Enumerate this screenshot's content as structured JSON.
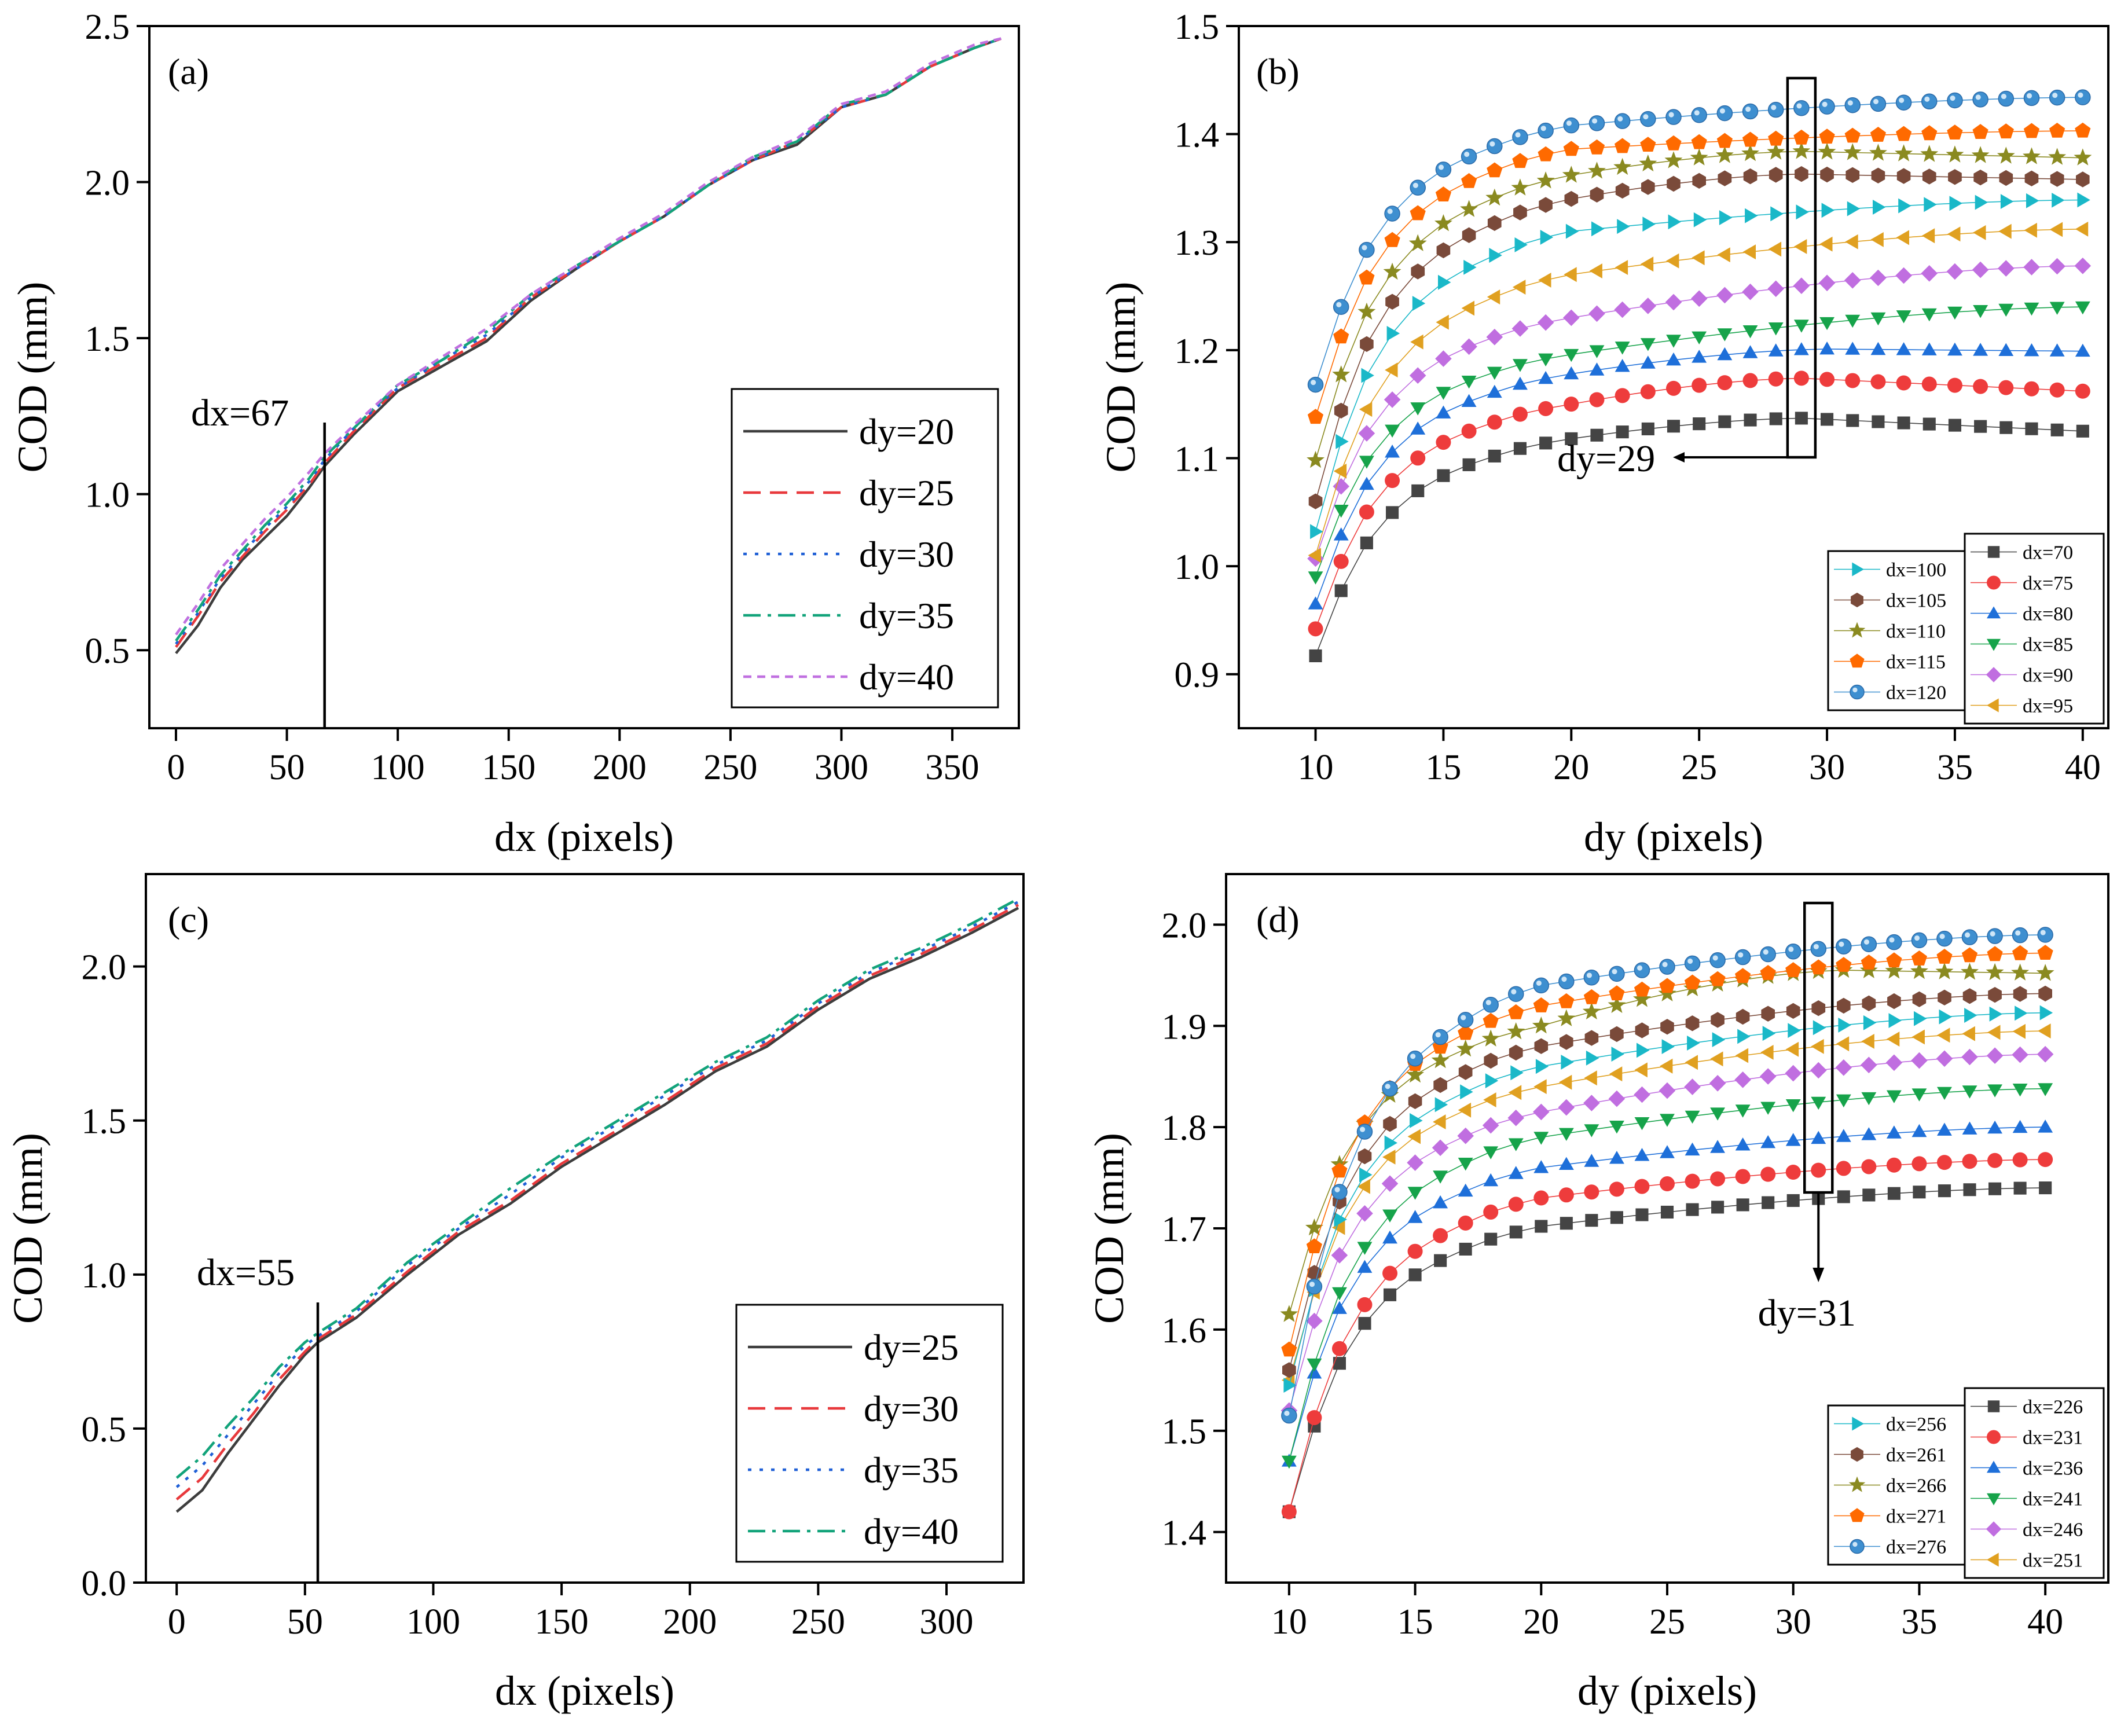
{
  "chart_data": [
    {
      "panel": "(a)",
      "type": "line",
      "xlabel": "dx (pixels)",
      "ylabel": "COD (mm)",
      "xlim": [
        -12,
        380
      ],
      "ylim": [
        0.25,
        2.5
      ],
      "xticks": [
        0,
        50,
        100,
        150,
        200,
        250,
        300,
        350
      ],
      "yticks": [
        0.5,
        1.0,
        1.5,
        2.0,
        2.5
      ],
      "ytick_labels": [
        "0.5",
        "1.0",
        "1.5",
        "2.0",
        "2.5"
      ],
      "annotation": {
        "text": "dx=67",
        "x": 67
      },
      "legend": "bottom-right",
      "series": [
        {
          "name": "dy=20",
          "color": "#3d3d3d",
          "dash": "solid",
          "x": [
            0,
            10,
            20,
            30,
            40,
            50,
            60,
            67,
            80,
            100,
            120,
            140,
            160,
            180,
            200,
            220,
            240,
            260,
            280,
            300,
            320,
            340,
            360,
            372
          ],
          "y": [
            0.49,
            0.58,
            0.7,
            0.79,
            0.86,
            0.93,
            1.02,
            1.09,
            1.19,
            1.33,
            1.41,
            1.49,
            1.62,
            1.72,
            1.81,
            1.89,
            1.99,
            2.07,
            2.12,
            2.24,
            2.28,
            2.37,
            2.43,
            2.46
          ]
        },
        {
          "name": "dy=25",
          "color": "#e8393c",
          "dash": "dashed",
          "x": [
            0,
            10,
            20,
            30,
            40,
            50,
            60,
            67,
            80,
            100,
            120,
            140,
            160,
            180,
            200,
            220,
            240,
            260,
            280,
            300,
            320,
            340,
            360,
            372
          ],
          "y": [
            0.51,
            0.61,
            0.72,
            0.8,
            0.88,
            0.95,
            1.03,
            1.1,
            1.2,
            1.34,
            1.42,
            1.5,
            1.63,
            1.72,
            1.81,
            1.89,
            1.99,
            2.07,
            2.13,
            2.24,
            2.28,
            2.37,
            2.43,
            2.46
          ]
        },
        {
          "name": "dy=30",
          "color": "#1f5fd6",
          "dash": "dotted",
          "x": [
            0,
            10,
            20,
            30,
            40,
            50,
            60,
            67,
            80,
            100,
            120,
            140,
            160,
            180,
            200,
            220,
            240,
            260,
            280,
            300,
            320,
            340,
            360,
            372
          ],
          "y": [
            0.52,
            0.62,
            0.73,
            0.81,
            0.89,
            0.96,
            1.04,
            1.11,
            1.21,
            1.34,
            1.43,
            1.51,
            1.63,
            1.72,
            1.81,
            1.89,
            1.99,
            2.07,
            2.13,
            2.24,
            2.28,
            2.37,
            2.43,
            2.46
          ]
        },
        {
          "name": "dy=35",
          "color": "#12a37a",
          "dash": "dashdot",
          "x": [
            0,
            10,
            20,
            30,
            40,
            50,
            60,
            67,
            80,
            100,
            120,
            140,
            160,
            180,
            200,
            220,
            240,
            260,
            280,
            300,
            320,
            340,
            360,
            372
          ],
          "y": [
            0.53,
            0.63,
            0.74,
            0.82,
            0.9,
            0.97,
            1.05,
            1.12,
            1.21,
            1.35,
            1.43,
            1.52,
            1.64,
            1.73,
            1.81,
            1.89,
            1.99,
            2.08,
            2.13,
            2.25,
            2.28,
            2.37,
            2.43,
            2.46
          ]
        },
        {
          "name": "dy=40",
          "color": "#c070e0",
          "dash": "shortdash",
          "x": [
            0,
            10,
            20,
            30,
            40,
            50,
            60,
            67,
            80,
            100,
            120,
            140,
            160,
            180,
            200,
            220,
            240,
            260,
            280,
            300,
            320,
            340,
            360,
            372
          ],
          "y": [
            0.55,
            0.65,
            0.76,
            0.84,
            0.92,
            0.99,
            1.07,
            1.13,
            1.22,
            1.35,
            1.44,
            1.53,
            1.64,
            1.73,
            1.82,
            1.9,
            2.0,
            2.08,
            2.14,
            2.25,
            2.29,
            2.38,
            2.44,
            2.46
          ]
        }
      ]
    },
    {
      "panel": "(b)",
      "type": "line",
      "xlabel": "dy (pixels)",
      "ylabel": "COD (mm)",
      "xlim": [
        7,
        41
      ],
      "ylim": [
        0.85,
        1.5
      ],
      "xticks": [
        10,
        15,
        20,
        25,
        30,
        35,
        40
      ],
      "yticks": [
        0.9,
        1.0,
        1.1,
        1.2,
        1.3,
        1.4,
        1.5
      ],
      "ytick_labels": [
        "0.9",
        "1.0",
        "1.1",
        "1.2",
        "1.3",
        "1.4",
        "1.5"
      ],
      "annotation": {
        "text": "dy=29",
        "x": 29
      },
      "legend": "bottom-right",
      "legend_left": [
        "dx=100",
        "dx=105",
        "dx=110",
        "dx=115",
        "dx=120"
      ],
      "legend_right": [
        "dx=70",
        "dx=75",
        "dx=80",
        "dx=85",
        "dx=90",
        "dx=95"
      ],
      "series": [
        {
          "name": "dx=70",
          "color": "#444444",
          "marker": "square",
          "y10": 0.917,
          "y20": 1.118,
          "ymax": 1.137,
          "yend": 1.125,
          "pk": 29
        },
        {
          "name": "dx=75",
          "color": "#ee3c3c",
          "marker": "circle",
          "y10": 0.942,
          "y20": 1.15,
          "ymax": 1.174,
          "yend": 1.162,
          "pk": 29
        },
        {
          "name": "dx=80",
          "color": "#1e6fd9",
          "marker": "triangle-up",
          "y10": 0.965,
          "y20": 1.178,
          "ymax": 1.201,
          "yend": 1.199,
          "pk": 30
        },
        {
          "name": "dx=85",
          "color": "#16a34a",
          "marker": "triangle-down",
          "y10": 0.99,
          "y20": 1.196,
          "ymax": 1.24,
          "yend": 1.24,
          "pk": 40
        },
        {
          "name": "dx=90",
          "color": "#c06ee0",
          "marker": "diamond",
          "y10": 1.007,
          "y20": 1.23,
          "ymax": 1.278,
          "yend": 1.278,
          "pk": 40
        },
        {
          "name": "dx=95",
          "color": "#e0a020",
          "marker": "triangle-left",
          "y10": 1.01,
          "y20": 1.27,
          "ymax": 1.312,
          "yend": 1.312,
          "pk": 40
        },
        {
          "name": "dx=100",
          "color": "#1ab8c8",
          "marker": "triangle-right",
          "y10": 1.032,
          "y20": 1.31,
          "ymax": 1.339,
          "yend": 1.339,
          "pk": 40
        },
        {
          "name": "dx=105",
          "color": "#7a4a3a",
          "marker": "hexagon",
          "y10": 1.06,
          "y20": 1.34,
          "ymax": 1.363,
          "yend": 1.358,
          "pk": 29
        },
        {
          "name": "dx=110",
          "color": "#8a8a20",
          "marker": "star",
          "y10": 1.098,
          "y20": 1.362,
          "ymax": 1.384,
          "yend": 1.378,
          "pk": 29
        },
        {
          "name": "dx=115",
          "color": "#ff6a00",
          "marker": "pentagon",
          "y10": 1.138,
          "y20": 1.386,
          "ymax": 1.403,
          "yend": 1.403,
          "pk": 40
        },
        {
          "name": "dx=120",
          "color": "#3e8fd0",
          "marker": "sphere",
          "y10": 1.168,
          "y20": 1.408,
          "ymax": 1.434,
          "yend": 1.434,
          "pk": 40
        }
      ]
    },
    {
      "panel": "(c)",
      "type": "line",
      "xlabel": "dx (pixels)",
      "ylabel": "COD (mm)",
      "xlim": [
        -12,
        330
      ],
      "ylim": [
        0.0,
        2.3
      ],
      "xticks": [
        0,
        50,
        100,
        150,
        200,
        250,
        300
      ],
      "yticks": [
        0.0,
        0.5,
        1.0,
        1.5,
        2.0
      ],
      "ytick_labels": [
        "0.0",
        "0.5",
        "1.0",
        "1.5",
        "2.0"
      ],
      "annotation": {
        "text": "dx=55",
        "x": 55
      },
      "legend": "bottom-right",
      "series": [
        {
          "name": "dy=25",
          "color": "#3d3d3d",
          "dash": "solid",
          "x": [
            0,
            10,
            20,
            30,
            40,
            50,
            55,
            70,
            90,
            110,
            130,
            150,
            170,
            190,
            210,
            230,
            250,
            270,
            290,
            310,
            328
          ],
          "y": [
            0.23,
            0.3,
            0.42,
            0.53,
            0.64,
            0.74,
            0.78,
            0.86,
            1.0,
            1.13,
            1.23,
            1.35,
            1.45,
            1.55,
            1.66,
            1.74,
            1.86,
            1.96,
            2.03,
            2.11,
            2.19
          ]
        },
        {
          "name": "dy=30",
          "color": "#e8393c",
          "dash": "dashed",
          "x": [
            0,
            10,
            20,
            30,
            40,
            50,
            55,
            70,
            90,
            110,
            130,
            150,
            170,
            190,
            210,
            230,
            250,
            270,
            290,
            310,
            328
          ],
          "y": [
            0.27,
            0.34,
            0.45,
            0.55,
            0.66,
            0.75,
            0.79,
            0.87,
            1.01,
            1.14,
            1.24,
            1.36,
            1.46,
            1.56,
            1.67,
            1.75,
            1.87,
            1.97,
            2.04,
            2.12,
            2.2
          ]
        },
        {
          "name": "dy=35",
          "color": "#1f5fd6",
          "dash": "dotted",
          "x": [
            0,
            10,
            20,
            30,
            40,
            50,
            55,
            70,
            90,
            110,
            130,
            150,
            170,
            190,
            210,
            230,
            250,
            270,
            290,
            310,
            328
          ],
          "y": [
            0.31,
            0.38,
            0.48,
            0.58,
            0.68,
            0.77,
            0.8,
            0.88,
            1.03,
            1.15,
            1.26,
            1.38,
            1.48,
            1.58,
            1.68,
            1.76,
            1.88,
            1.98,
            2.05,
            2.13,
            2.21
          ]
        },
        {
          "name": "dy=40",
          "color": "#12a37a",
          "dash": "dashdot",
          "x": [
            0,
            10,
            20,
            30,
            40,
            50,
            55,
            70,
            90,
            110,
            130,
            150,
            170,
            190,
            210,
            230,
            250,
            270,
            290,
            310,
            328
          ],
          "y": [
            0.34,
            0.41,
            0.51,
            0.6,
            0.7,
            0.78,
            0.81,
            0.89,
            1.04,
            1.16,
            1.28,
            1.39,
            1.49,
            1.59,
            1.69,
            1.77,
            1.89,
            1.99,
            2.06,
            2.14,
            2.22
          ]
        }
      ]
    },
    {
      "panel": "(d)",
      "type": "line",
      "xlabel": "dy (pixels)",
      "ylabel": "COD (mm)",
      "xlim": [
        7.5,
        42.5
      ],
      "ylim": [
        1.35,
        2.05
      ],
      "xticks": [
        10,
        15,
        20,
        25,
        30,
        35,
        40
      ],
      "yticks": [
        1.4,
        1.5,
        1.6,
        1.7,
        1.8,
        1.9,
        2.0
      ],
      "ytick_labels": [
        "1.4",
        "1.5",
        "1.6",
        "1.7",
        "1.8",
        "1.9",
        "2.0"
      ],
      "annotation": {
        "text": "dy=31",
        "x": 31
      },
      "legend": "bottom-right",
      "legend_left": [
        "dx=256",
        "dx=261",
        "dx=266",
        "dx=271",
        "dx=276"
      ],
      "legend_right": [
        "dx=226",
        "dx=231",
        "dx=236",
        "dx=241",
        "dx=246",
        "dx=251"
      ],
      "series": [
        {
          "name": "dx=226",
          "color": "#444444",
          "marker": "square",
          "y10": 1.42,
          "y20": 1.702,
          "ymax": 1.74,
          "yend": 1.74,
          "pk": 40
        },
        {
          "name": "dx=231",
          "color": "#ee3c3c",
          "marker": "circle",
          "y10": 1.42,
          "y20": 1.73,
          "ymax": 1.768,
          "yend": 1.768,
          "pk": 40
        },
        {
          "name": "dx=236",
          "color": "#1e6fd9",
          "marker": "triangle-up",
          "y10": 1.47,
          "y20": 1.76,
          "ymax": 1.8,
          "yend": 1.8,
          "pk": 40
        },
        {
          "name": "dx=241",
          "color": "#16a34a",
          "marker": "triangle-down",
          "y10": 1.47,
          "y20": 1.79,
          "ymax": 1.838,
          "yend": 1.838,
          "pk": 40
        },
        {
          "name": "dx=246",
          "color": "#c06ee0",
          "marker": "diamond",
          "y10": 1.52,
          "y20": 1.815,
          "ymax": 1.872,
          "yend": 1.872,
          "pk": 40
        },
        {
          "name": "dx=251",
          "color": "#e0a020",
          "marker": "triangle-left",
          "y10": 1.55,
          "y20": 1.84,
          "ymax": 1.895,
          "yend": 1.895,
          "pk": 40
        },
        {
          "name": "dx=256",
          "color": "#1ab8c8",
          "marker": "triangle-right",
          "y10": 1.545,
          "y20": 1.86,
          "ymax": 1.913,
          "yend": 1.913,
          "pk": 40
        },
        {
          "name": "dx=261",
          "color": "#7a4a3a",
          "marker": "hexagon",
          "y10": 1.56,
          "y20": 1.88,
          "ymax": 1.932,
          "yend": 1.932,
          "pk": 40
        },
        {
          "name": "dx=266",
          "color": "#8a8a20",
          "marker": "star",
          "y10": 1.615,
          "y20": 1.9,
          "ymax": 1.955,
          "yend": 1.952,
          "pk": 32
        },
        {
          "name": "dx=271",
          "color": "#ff6a00",
          "marker": "pentagon",
          "y10": 1.58,
          "y20": 1.92,
          "ymax": 1.972,
          "yend": 1.972,
          "pk": 40
        },
        {
          "name": "dx=276",
          "color": "#3e8fd0",
          "marker": "sphere",
          "y10": 1.515,
          "y20": 1.94,
          "ymax": 1.99,
          "yend": 1.99,
          "pk": 40
        }
      ]
    }
  ]
}
